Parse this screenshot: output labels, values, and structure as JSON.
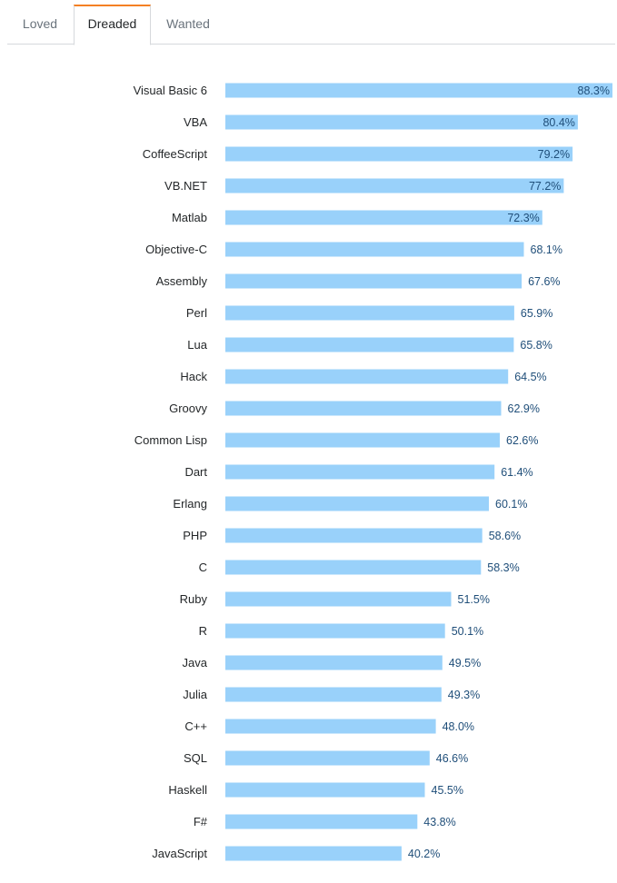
{
  "tabs": {
    "loved": "Loved",
    "dreaded": "Dreaded",
    "wanted": "Wanted",
    "active": "Dreaded"
  },
  "colors": {
    "bar": "#99d1fa",
    "active_tab_accent": "#f48024"
  },
  "chart_data": {
    "type": "bar",
    "orientation": "horizontal",
    "title": "",
    "xlabel": "",
    "ylabel": "",
    "unit": "%",
    "xlim": [
      0,
      88.3
    ],
    "categories": [
      "Visual Basic 6",
      "VBA",
      "CoffeeScript",
      "VB.NET",
      "Matlab",
      "Objective-C",
      "Assembly",
      "Perl",
      "Lua",
      "Hack",
      "Groovy",
      "Common Lisp",
      "Dart",
      "Erlang",
      "PHP",
      "C",
      "Ruby",
      "R",
      "Java",
      "Julia",
      "C++",
      "SQL",
      "Haskell",
      "F#",
      "JavaScript"
    ],
    "values": [
      88.3,
      80.4,
      79.2,
      77.2,
      72.3,
      68.1,
      67.6,
      65.9,
      65.8,
      64.5,
      62.9,
      62.6,
      61.4,
      60.1,
      58.6,
      58.3,
      51.5,
      50.1,
      49.5,
      49.3,
      48.0,
      46.6,
      45.5,
      43.8,
      40.2
    ],
    "value_labels": [
      "88.3%",
      "80.4%",
      "79.2%",
      "77.2%",
      "72.3%",
      "68.1%",
      "67.6%",
      "65.9%",
      "65.8%",
      "64.5%",
      "62.9%",
      "62.6%",
      "61.4%",
      "60.1%",
      "58.6%",
      "58.3%",
      "51.5%",
      "50.1%",
      "49.5%",
      "49.3%",
      "48.0%",
      "46.6%",
      "45.5%",
      "43.8%",
      "40.2%"
    ]
  }
}
